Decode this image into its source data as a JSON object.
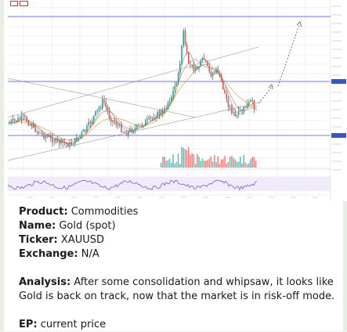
{
  "post": {
    "product_label": "Product:",
    "product_value": "Commodities",
    "name_label": "Name:",
    "name_value": "Gold (spot)",
    "ticker_label": "Ticker:",
    "ticker_value": "XAUUSD",
    "exchange_label": "Exchange:",
    "exchange_value": "N/A",
    "analysis_label": "Analysis:",
    "analysis_value": "After some consolidation and whipsaw, it looks like Gold is back on track, now that the market is in risk-off mode.",
    "ep_label": "EP:",
    "ep_value": "current price"
  },
  "colors": {
    "accent_green": "#4caf50",
    "candle_up": "#26a69a",
    "candle_down": "#ef5350",
    "price_tag": "#3a55c8",
    "text": "#1a1a1a"
  },
  "chart_data": {
    "type": "candlestick",
    "symbol": "XAUUSD",
    "volume": true,
    "oscillator_panel": true,
    "projection": "dashed arrows pointing up",
    "grid": true
  }
}
